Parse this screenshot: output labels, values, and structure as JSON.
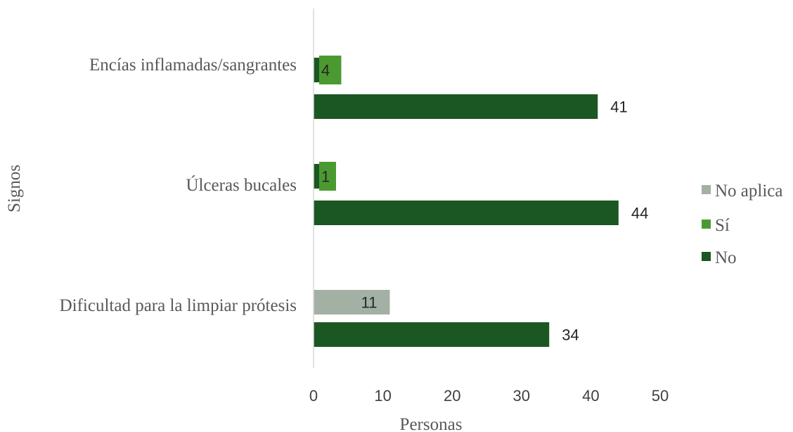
{
  "chart_data": {
    "type": "bar",
    "orientation": "horizontal",
    "categories": [
      "Encías inflamadas/sangrantes",
      "Úlceras bucales",
      "Dificultad para la limpiar prótesis"
    ],
    "series": [
      {
        "name": "No aplica",
        "values": [
          0,
          0,
          11
        ],
        "labels": [
          "",
          "",
          "11"
        ],
        "color": "#a3b1a4"
      },
      {
        "name": "Sí",
        "values": [
          4,
          1,
          0
        ],
        "labels": [
          "4",
          "1",
          ""
        ],
        "color": "#4b9a31"
      },
      {
        "name": "No",
        "values": [
          41,
          44,
          34
        ],
        "labels": [
          "41",
          "44",
          "34"
        ],
        "color": "#1a5722"
      }
    ],
    "xlabel": "Personas",
    "ylabel": "Signos",
    "xlim": [
      0,
      50
    ],
    "xticks": [
      "0",
      "10",
      "20",
      "30",
      "40",
      "50"
    ],
    "grid": false,
    "legend_position": "right"
  }
}
